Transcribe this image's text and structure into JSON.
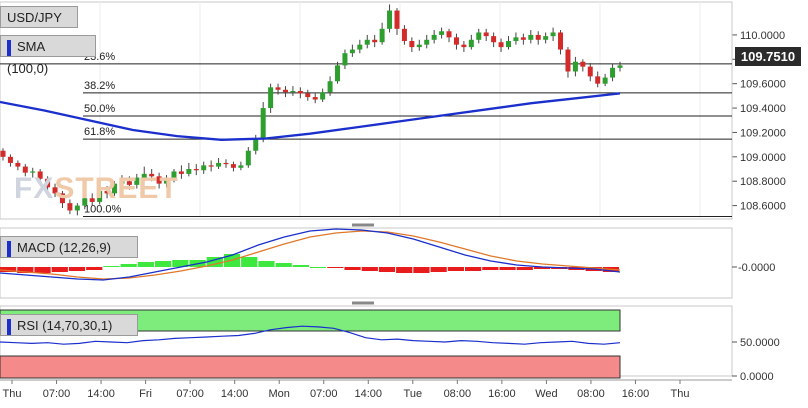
{
  "chart_data": [
    {
      "type": "candlestick",
      "title": "USD/JPY",
      "indicator_label": "SMA (100,0)",
      "last_price": "109.7510",
      "watermark": [
        "FX",
        "STREET"
      ],
      "y_ticks": [
        "110.0000",
        "109.8000",
        "109.6000",
        "109.4000",
        "109.2000",
        "109.0000",
        "108.8000",
        "108.6000"
      ],
      "y_tick_values": [
        110.0,
        109.8,
        109.6,
        109.4,
        109.2,
        109.0,
        108.8,
        108.6
      ],
      "ylim": [
        108.49,
        110.27
      ],
      "fibonacci": [
        {
          "label": "61.8%",
          "value": 109.145
        },
        {
          "label": "50.0%",
          "value": 109.335
        },
        {
          "label": "38.2%",
          "value": 109.525
        },
        {
          "label": "23.6%",
          "value": 109.762
        },
        {
          "label": "100.0%",
          "value": 108.51
        }
      ],
      "sma_100": [
        109.45,
        109.38,
        109.3,
        109.22,
        109.17,
        109.14,
        109.15,
        109.19,
        109.24,
        109.29,
        109.34,
        109.39,
        109.44,
        109.48,
        109.52
      ],
      "candles": [
        [
          109.05,
          109.0,
          109.07,
          108.97
        ],
        [
          109.0,
          108.95,
          109.02,
          108.92
        ],
        [
          108.95,
          108.92,
          108.97,
          108.89
        ],
        [
          108.92,
          108.87,
          108.94,
          108.84
        ],
        [
          108.87,
          108.88,
          108.91,
          108.83
        ],
        [
          108.88,
          108.82,
          108.9,
          108.79
        ],
        [
          108.82,
          108.75,
          108.84,
          108.72
        ],
        [
          108.75,
          108.7,
          108.78,
          108.67
        ],
        [
          108.7,
          108.62,
          108.72,
          108.58
        ],
        [
          108.62,
          108.56,
          108.65,
          108.53
        ],
        [
          108.56,
          108.6,
          108.62,
          108.52
        ],
        [
          108.6,
          108.66,
          108.69,
          108.57
        ],
        [
          108.66,
          108.63,
          108.7,
          108.6
        ],
        [
          108.63,
          108.72,
          108.75,
          108.61
        ],
        [
          108.72,
          108.7,
          108.76,
          108.66
        ],
        [
          108.7,
          108.78,
          108.8,
          108.68
        ],
        [
          108.78,
          108.8,
          108.85,
          108.75
        ],
        [
          108.8,
          108.77,
          108.84,
          108.73
        ],
        [
          108.77,
          108.83,
          108.86,
          108.74
        ],
        [
          108.83,
          108.86,
          108.92,
          108.8
        ],
        [
          108.86,
          108.84,
          108.9,
          108.8
        ],
        [
          108.84,
          108.78,
          108.87,
          108.74
        ],
        [
          108.78,
          108.82,
          108.85,
          108.75
        ],
        [
          108.82,
          108.88,
          108.9,
          108.79
        ],
        [
          108.88,
          108.86,
          108.93,
          108.82
        ],
        [
          108.86,
          108.9,
          108.95,
          108.84
        ],
        [
          108.9,
          108.89,
          108.94,
          108.85
        ],
        [
          108.89,
          108.93,
          108.96,
          108.86
        ],
        [
          108.93,
          108.92,
          108.97,
          108.88
        ],
        [
          108.92,
          108.95,
          108.99,
          108.9
        ],
        [
          108.95,
          108.94,
          108.98,
          108.91
        ],
        [
          108.94,
          108.91,
          108.96,
          108.88
        ],
        [
          108.91,
          108.93,
          108.96,
          108.89
        ],
        [
          108.93,
          109.05,
          109.08,
          108.91
        ],
        [
          109.05,
          109.15,
          109.18,
          109.02
        ],
        [
          109.15,
          109.4,
          109.45,
          109.12
        ],
        [
          109.4,
          109.57,
          109.6,
          109.36
        ],
        [
          109.57,
          109.55,
          109.6,
          109.51
        ],
        [
          109.55,
          109.53,
          109.58,
          109.49
        ],
        [
          109.53,
          109.54,
          109.58,
          109.5
        ],
        [
          109.54,
          109.52,
          109.57,
          109.48
        ],
        [
          109.52,
          109.49,
          109.55,
          109.46
        ],
        [
          109.49,
          109.47,
          109.52,
          109.44
        ],
        [
          109.47,
          109.53,
          109.56,
          109.45
        ],
        [
          109.53,
          109.62,
          109.66,
          109.5
        ],
        [
          109.62,
          109.75,
          109.78,
          109.6
        ],
        [
          109.75,
          109.85,
          109.88,
          109.72
        ],
        [
          109.85,
          109.88,
          109.92,
          109.82
        ],
        [
          109.88,
          109.92,
          109.96,
          109.85
        ],
        [
          109.92,
          109.96,
          110.0,
          109.89
        ],
        [
          109.96,
          109.94,
          110.0,
          109.9
        ],
        [
          109.94,
          110.05,
          110.1,
          109.92
        ],
        [
          110.05,
          110.2,
          110.25,
          110.02
        ],
        [
          110.2,
          110.05,
          110.22,
          110.0
        ],
        [
          110.05,
          109.95,
          110.08,
          109.92
        ],
        [
          109.95,
          109.9,
          109.98,
          109.86
        ],
        [
          109.9,
          109.92,
          109.96,
          109.87
        ],
        [
          109.92,
          109.96,
          110.0,
          109.89
        ],
        [
          109.96,
          110.0,
          110.04,
          109.93
        ],
        [
          110.0,
          110.03,
          110.06,
          109.97
        ],
        [
          110.03,
          109.98,
          110.05,
          109.94
        ],
        [
          109.98,
          109.92,
          110.01,
          109.88
        ],
        [
          109.92,
          109.9,
          109.95,
          109.86
        ],
        [
          109.9,
          109.96,
          110.0,
          109.88
        ],
        [
          109.96,
          110.02,
          110.05,
          109.93
        ],
        [
          110.02,
          109.99,
          110.05,
          109.95
        ],
        [
          109.99,
          109.94,
          110.02,
          109.9
        ],
        [
          109.94,
          109.9,
          109.97,
          109.86
        ],
        [
          109.9,
          109.95,
          109.99,
          109.88
        ],
        [
          109.95,
          109.98,
          110.02,
          109.92
        ],
        [
          109.98,
          109.96,
          110.01,
          109.92
        ],
        [
          109.96,
          110.0,
          110.04,
          109.93
        ],
        [
          110.0,
          109.96,
          110.03,
          109.92
        ],
        [
          109.96,
          109.99,
          110.02,
          109.93
        ],
        [
          109.99,
          110.02,
          110.06,
          109.95
        ],
        [
          110.02,
          109.88,
          110.04,
          109.84
        ],
        [
          109.88,
          109.7,
          109.9,
          109.65
        ],
        [
          109.7,
          109.78,
          109.82,
          109.66
        ],
        [
          109.78,
          109.74,
          109.8,
          109.7
        ],
        [
          109.74,
          109.66,
          109.77,
          109.62
        ],
        [
          109.66,
          109.6,
          109.7,
          109.57
        ],
        [
          109.6,
          109.65,
          109.68,
          109.58
        ],
        [
          109.65,
          109.73,
          109.76,
          109.62
        ],
        [
          109.73,
          109.75,
          109.78,
          109.7
        ]
      ]
    },
    {
      "type": "histogram",
      "title": "MACD (12,26,9)",
      "y_ticks": [
        "-0.0000"
      ],
      "macd": [
        -0.06,
        -0.08,
        -0.1,
        -0.12,
        -0.13,
        -0.1,
        -0.05,
        0.0,
        0.05,
        0.12,
        0.22,
        0.3,
        0.36,
        0.38,
        0.37,
        0.34,
        0.28,
        0.2,
        0.12,
        0.06,
        0.02,
        0.0,
        -0.01,
        -0.02,
        -0.05
      ],
      "signal": [
        -0.03,
        -0.05,
        -0.07,
        -0.1,
        -0.12,
        -0.11,
        -0.08,
        -0.04,
        0.01,
        0.07,
        0.15,
        0.23,
        0.3,
        0.34,
        0.36,
        0.35,
        0.31,
        0.25,
        0.18,
        0.11,
        0.06,
        0.03,
        0.01,
        -0.01,
        -0.03
      ],
      "histogram": [
        -0.05,
        -0.06,
        -0.06,
        -0.05,
        -0.04,
        -0.03,
        0.01,
        0.03,
        0.05,
        0.06,
        0.07,
        0.07,
        0.1,
        0.13,
        0.1,
        0.06,
        0.04,
        0.02,
        0.0,
        -0.01,
        -0.03,
        -0.04,
        -0.05,
        -0.06,
        -0.06,
        -0.05,
        -0.04,
        -0.04,
        -0.03,
        -0.03,
        -0.03,
        -0.02,
        -0.02,
        -0.03,
        -0.04,
        -0.05
      ]
    },
    {
      "type": "line",
      "title": "RSI (14,70,30,1)",
      "y_ticks": [
        "50.0000",
        "0.0000"
      ],
      "upper_band": 70,
      "lower_band": 30,
      "values": [
        50,
        49,
        48,
        49,
        47,
        48,
        51,
        50,
        49,
        52,
        53,
        55,
        56,
        57,
        58,
        59,
        62,
        67,
        70,
        72,
        71,
        69,
        63,
        56,
        53,
        54,
        52,
        51,
        50,
        52,
        51,
        49,
        48,
        47,
        49,
        50,
        51,
        48,
        47,
        49
      ],
      "x_ticks": [
        "Thu",
        "07:00",
        "14:00",
        "Fri",
        "07:00",
        "14:00",
        "Mon",
        "07:00",
        "14:00",
        "Tue",
        "08:00",
        "16:00",
        "Wed",
        "08:00",
        "16:00",
        "Thu"
      ],
      "x_tick_positions": [
        0,
        3.5,
        7,
        10.5,
        14,
        17.5,
        21,
        24.5,
        28,
        31.5,
        35,
        38.5,
        42,
        45.5,
        49,
        52.5
      ]
    }
  ]
}
